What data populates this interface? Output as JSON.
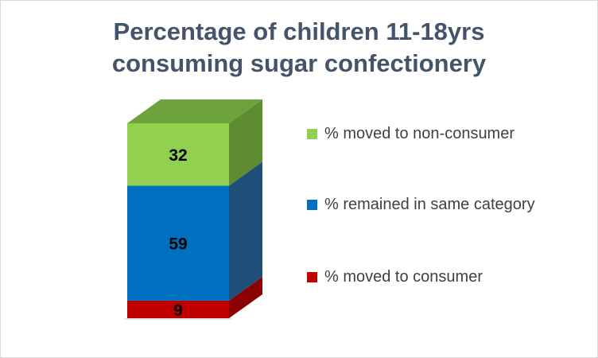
{
  "chart_data": {
    "type": "bar",
    "title_lines": [
      "Percentage of children 11-18yrs",
      "consuming sugar confectionery"
    ],
    "categories": [
      ""
    ],
    "stacked": true,
    "three_d": true,
    "ylim": [
      0,
      100
    ],
    "series": [
      {
        "name": "% moved to consumer",
        "values": [
          9
        ],
        "color": "#c00000",
        "side_color": "#8b0000",
        "top_color": "#d62a2a"
      },
      {
        "name": "% remained in same category",
        "values": [
          59
        ],
        "color": "#0070c0",
        "side_color": "#1f4e79",
        "top_color": "#2e86d0"
      },
      {
        "name": "% moved to non-consumer",
        "values": [
          32
        ],
        "color": "#92d050",
        "side_color": "#5e8c31",
        "top_color": "#6ea33c"
      }
    ],
    "legend": {
      "position": "right",
      "order": [
        "% moved to non-consumer",
        "% remained in same category",
        "% moved to consumer"
      ]
    },
    "grid": false,
    "data_labels": true
  }
}
